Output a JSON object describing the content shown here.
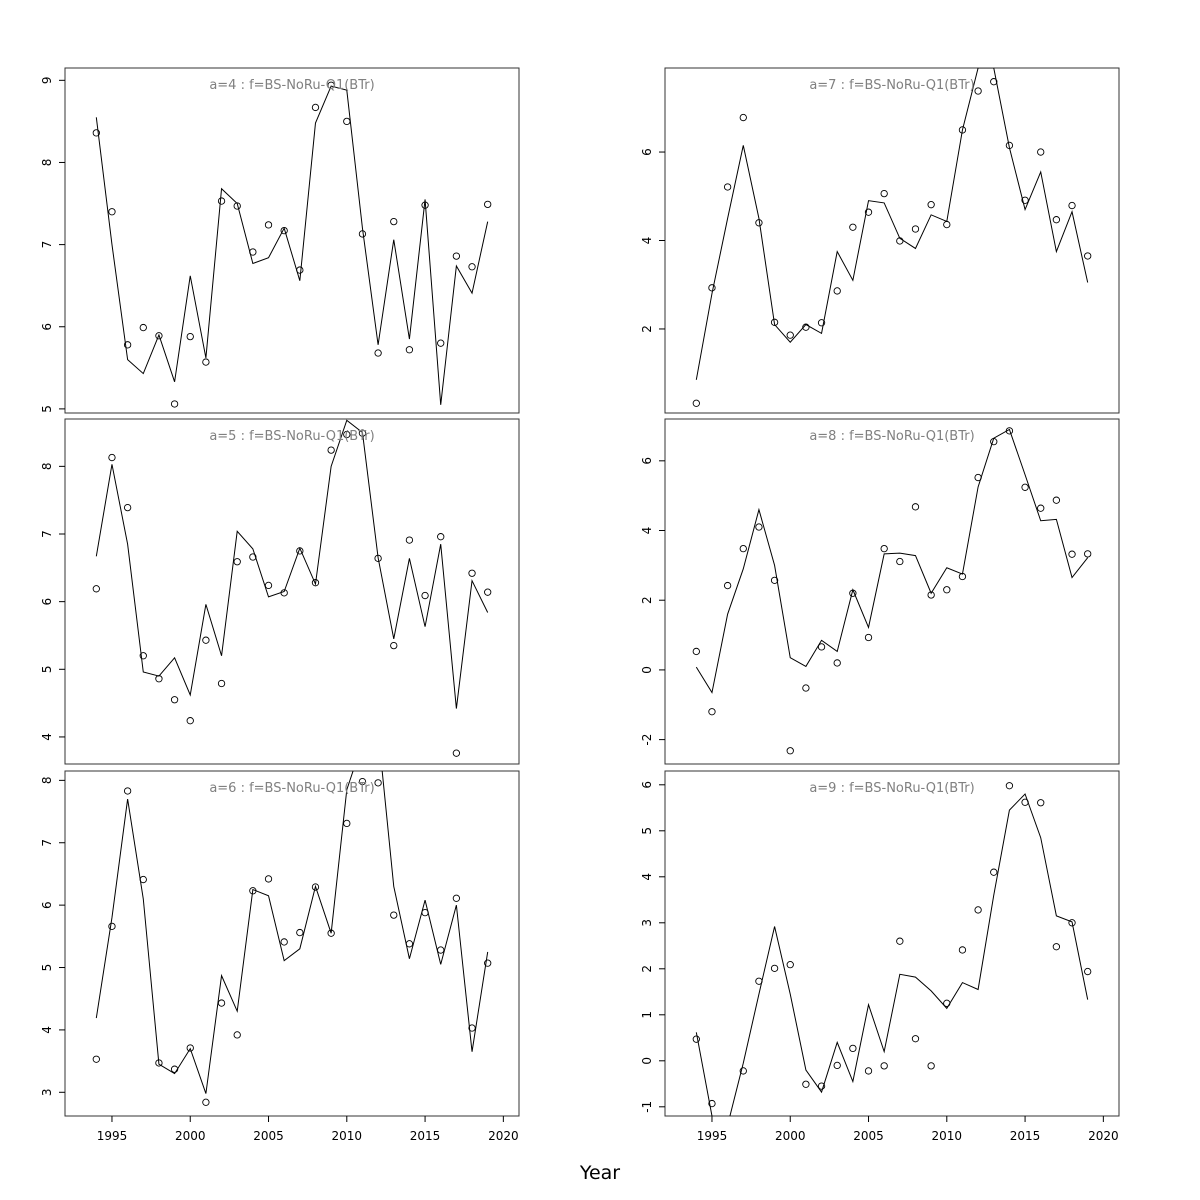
{
  "figure": {
    "xlabel": "Year"
  },
  "chart_data": [
    {
      "type": "line",
      "title": "a=4  :  f=BS-NoRu-Q1(BTr)",
      "x": [
        1994,
        1995,
        1996,
        1997,
        1998,
        1999,
        2000,
        2001,
        2002,
        2003,
        2004,
        2005,
        2006,
        2007,
        2008,
        2009,
        2010,
        2011,
        2012,
        2013,
        2014,
        2015,
        2016,
        2017,
        2018,
        2019
      ],
      "xlim": [
        1992,
        2021
      ],
      "ylim": [
        4.95,
        9.15
      ],
      "xticks": [
        1995,
        2000,
        2005,
        2010,
        2015,
        2020
      ],
      "yticks": [
        5,
        6,
        7,
        8,
        9
      ],
      "show_xticks": false,
      "series": [
        {
          "kind": "points",
          "values": [
            8.36,
            7.4,
            5.78,
            5.99,
            5.89,
            5.06,
            5.88,
            5.57,
            7.53,
            7.47,
            6.91,
            7.24,
            7.17,
            6.69,
            8.67,
            8.94,
            8.5,
            7.13,
            5.68,
            7.28,
            5.72,
            7.48,
            5.8,
            6.86,
            6.73,
            7.49
          ]
        },
        {
          "kind": "line",
          "values": [
            8.55,
            7.0,
            5.6,
            5.43,
            5.9,
            5.33,
            6.62,
            5.62,
            7.68,
            7.5,
            6.77,
            6.84,
            7.2,
            6.56,
            8.48,
            8.93,
            8.88,
            7.2,
            5.78,
            7.06,
            5.85,
            7.55,
            5.05,
            6.74,
            6.41,
            7.28
          ]
        }
      ]
    },
    {
      "type": "line",
      "title": "a=7  :  f=BS-NoRu-Q1(BTr)",
      "x": [
        1994,
        1995,
        1996,
        1997,
        1998,
        1999,
        2000,
        2001,
        2002,
        2003,
        2004,
        2005,
        2006,
        2007,
        2008,
        2009,
        2010,
        2011,
        2012,
        2013,
        2014,
        2015,
        2016,
        2017,
        2018,
        2019
      ],
      "xlim": [
        1992,
        2021
      ],
      "ylim": [
        0.1,
        7.9
      ],
      "xticks": [
        1995,
        2000,
        2005,
        2010,
        2015,
        2020
      ],
      "yticks": [
        2,
        4,
        6
      ],
      "show_xticks": false,
      "series": [
        {
          "kind": "points",
          "values": [
            0.32,
            2.93,
            5.21,
            6.78,
            4.4,
            2.15,
            1.86,
            2.04,
            2.14,
            2.86,
            4.3,
            4.64,
            5.06,
            3.99,
            4.26,
            4.81,
            4.36,
            6.5,
            7.38,
            7.59,
            6.15,
            4.91,
            6.0,
            4.47,
            4.79,
            3.65
          ]
        },
        {
          "kind": "line",
          "values": [
            0.85,
            2.8,
            4.5,
            6.15,
            4.5,
            2.1,
            1.7,
            2.1,
            1.9,
            3.75,
            3.1,
            4.9,
            4.85,
            4.05,
            3.82,
            4.58,
            4.43,
            6.5,
            7.9,
            7.9,
            6.1,
            4.7,
            5.55,
            3.75,
            4.65,
            3.05
          ]
        }
      ]
    },
    {
      "type": "line",
      "title": "a=5  :  f=BS-NoRu-Q1(BTr)",
      "x": [
        1994,
        1995,
        1996,
        1997,
        1998,
        1999,
        2000,
        2001,
        2002,
        2003,
        2004,
        2005,
        2006,
        2007,
        2008,
        2009,
        2010,
        2011,
        2012,
        2013,
        2014,
        2015,
        2016,
        2017,
        2018,
        2019
      ],
      "xlim": [
        1992,
        2021
      ],
      "ylim": [
        3.6,
        8.7
      ],
      "xticks": [
        1995,
        2000,
        2005,
        2010,
        2015,
        2020
      ],
      "yticks": [
        4,
        5,
        6,
        7,
        8
      ],
      "show_xticks": false,
      "series": [
        {
          "kind": "points",
          "values": [
            6.19,
            8.13,
            7.39,
            5.2,
            4.86,
            4.55,
            4.24,
            5.43,
            4.79,
            6.59,
            6.66,
            6.24,
            6.13,
            6.75,
            6.28,
            8.24,
            8.47,
            8.49,
            6.64,
            5.35,
            6.91,
            6.09,
            6.96,
            3.76,
            6.42,
            6.14
          ]
        },
        {
          "kind": "line",
          "values": [
            6.67,
            8.03,
            6.85,
            4.96,
            4.9,
            5.17,
            4.62,
            5.96,
            5.2,
            7.04,
            6.78,
            6.07,
            6.15,
            6.79,
            6.26,
            8.0,
            8.68,
            8.5,
            6.65,
            5.45,
            6.64,
            5.63,
            6.85,
            4.42,
            6.31,
            5.84
          ]
        }
      ]
    },
    {
      "type": "line",
      "title": "a=8  :  f=BS-NoRu-Q1(BTr)",
      "x": [
        1994,
        1995,
        1996,
        1997,
        1998,
        1999,
        2000,
        2001,
        2002,
        2003,
        2004,
        2005,
        2006,
        2007,
        2008,
        2009,
        2010,
        2011,
        2012,
        2013,
        2014,
        2015,
        2016,
        2017,
        2018,
        2019
      ],
      "xlim": [
        1992,
        2021
      ],
      "ylim": [
        -2.7,
        7.2
      ],
      "xticks": [
        1995,
        2000,
        2005,
        2010,
        2015,
        2020
      ],
      "yticks": [
        -2,
        0,
        2,
        4,
        6
      ],
      "show_xticks": false,
      "series": [
        {
          "kind": "points",
          "values": [
            0.53,
            -1.2,
            2.42,
            3.48,
            4.1,
            2.57,
            -2.32,
            -0.52,
            0.66,
            0.2,
            2.2,
            0.93,
            3.48,
            3.11,
            4.68,
            2.15,
            2.3,
            2.68,
            5.52,
            6.55,
            6.86,
            5.24,
            4.64,
            4.87,
            3.32,
            3.33
          ]
        },
        {
          "kind": "line",
          "values": [
            0.08,
            -0.65,
            1.6,
            2.9,
            4.6,
            3.0,
            0.35,
            0.1,
            0.85,
            0.53,
            2.3,
            1.22,
            3.33,
            3.35,
            3.28,
            2.2,
            2.93,
            2.75,
            5.25,
            6.65,
            6.9,
            5.6,
            4.28,
            4.32,
            2.65,
            3.22
          ]
        }
      ]
    },
    {
      "type": "line",
      "title": "a=6  :  f=BS-NoRu-Q1(BTr)",
      "x": [
        1994,
        1995,
        1996,
        1997,
        1998,
        1999,
        2000,
        2001,
        2002,
        2003,
        2004,
        2005,
        2006,
        2007,
        2008,
        2009,
        2010,
        2011,
        2012,
        2013,
        2014,
        2015,
        2016,
        2017,
        2018,
        2019
      ],
      "xlim": [
        1992,
        2021
      ],
      "ylim": [
        2.62,
        8.15
      ],
      "xticks": [
        1995,
        2000,
        2005,
        2010,
        2015,
        2020
      ],
      "yticks": [
        3,
        4,
        5,
        6,
        7,
        8
      ],
      "show_xticks": true,
      "series": [
        {
          "kind": "points",
          "values": [
            3.53,
            5.66,
            7.83,
            6.41,
            3.47,
            3.37,
            3.71,
            2.84,
            4.43,
            3.92,
            6.23,
            6.42,
            5.41,
            5.56,
            6.29,
            5.55,
            7.31,
            7.98,
            7.96,
            5.84,
            5.38,
            5.88,
            5.28,
            6.11,
            4.03,
            5.07
          ]
        },
        {
          "kind": "line",
          "values": [
            4.19,
            5.8,
            7.7,
            6.1,
            3.45,
            3.3,
            3.7,
            2.98,
            4.87,
            4.3,
            6.25,
            6.15,
            5.11,
            5.3,
            6.3,
            5.55,
            7.85,
            8.6,
            8.8,
            6.3,
            5.14,
            6.08,
            5.05,
            6.0,
            3.65,
            5.25
          ]
        }
      ]
    },
    {
      "type": "line",
      "title": "a=9  :  f=BS-NoRu-Q1(BTr)",
      "x": [
        1994,
        1995,
        1996,
        1997,
        1998,
        1999,
        2000,
        2001,
        2002,
        2003,
        2004,
        2005,
        2006,
        2007,
        2008,
        2009,
        2010,
        2011,
        2012,
        2013,
        2014,
        2015,
        2016,
        2017,
        2018,
        2019
      ],
      "xlim": [
        1992,
        2021
      ],
      "ylim": [
        -1.2,
        6.3
      ],
      "xticks": [
        1995,
        2000,
        2005,
        2010,
        2015,
        2020
      ],
      "yticks": [
        -1,
        0,
        1,
        2,
        3,
        4,
        5,
        6
      ],
      "show_xticks": true,
      "series": [
        {
          "kind": "points",
          "values": [
            0.47,
            -0.93,
            -1.4,
            -0.22,
            1.73,
            2.01,
            2.09,
            -0.51,
            -0.55,
            -0.1,
            0.27,
            -0.22,
            -0.11,
            2.6,
            0.48,
            -0.11,
            1.25,
            2.41,
            3.28,
            4.1,
            5.98,
            5.62,
            5.61,
            2.48,
            3.0,
            1.94
          ]
        },
        {
          "kind": "line",
          "values": [
            0.62,
            -1.2,
            -1.4,
            -0.05,
            1.45,
            2.92,
            1.45,
            -0.2,
            -0.68,
            0.4,
            -0.45,
            1.22,
            0.2,
            1.88,
            1.82,
            1.52,
            1.14,
            1.7,
            1.55,
            3.6,
            5.45,
            5.8,
            4.85,
            3.15,
            3.02,
            1.33
          ]
        }
      ]
    }
  ]
}
